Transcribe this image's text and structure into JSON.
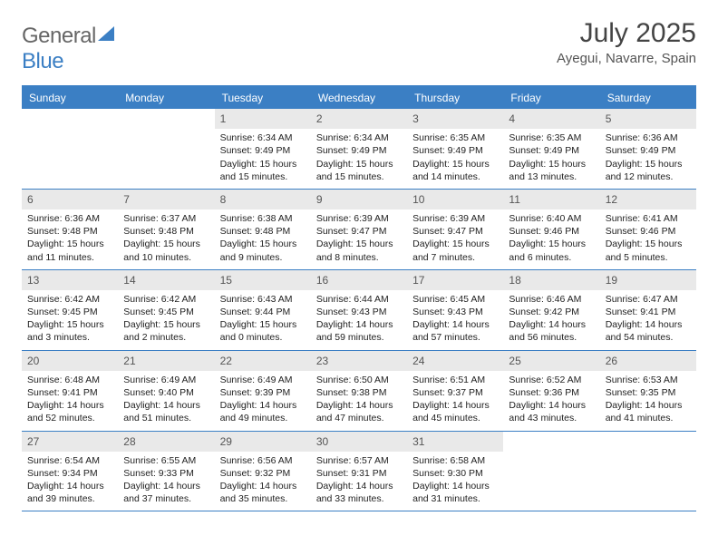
{
  "logo": {
    "part1": "General",
    "part2": "Blue"
  },
  "title": "July 2025",
  "location": "Ayegui, Navarre, Spain",
  "colors": {
    "accent": "#3b7fc4",
    "header_bg": "#e9e9e9",
    "text": "#222222",
    "muted": "#666666"
  },
  "dow": [
    "Sunday",
    "Monday",
    "Tuesday",
    "Wednesday",
    "Thursday",
    "Friday",
    "Saturday"
  ],
  "weeks": [
    [
      null,
      null,
      {
        "n": "1",
        "sr": "6:34 AM",
        "ss": "9:49 PM",
        "dl": "15 hours and 15 minutes."
      },
      {
        "n": "2",
        "sr": "6:34 AM",
        "ss": "9:49 PM",
        "dl": "15 hours and 15 minutes."
      },
      {
        "n": "3",
        "sr": "6:35 AM",
        "ss": "9:49 PM",
        "dl": "15 hours and 14 minutes."
      },
      {
        "n": "4",
        "sr": "6:35 AM",
        "ss": "9:49 PM",
        "dl": "15 hours and 13 minutes."
      },
      {
        "n": "5",
        "sr": "6:36 AM",
        "ss": "9:49 PM",
        "dl": "15 hours and 12 minutes."
      }
    ],
    [
      {
        "n": "6",
        "sr": "6:36 AM",
        "ss": "9:48 PM",
        "dl": "15 hours and 11 minutes."
      },
      {
        "n": "7",
        "sr": "6:37 AM",
        "ss": "9:48 PM",
        "dl": "15 hours and 10 minutes."
      },
      {
        "n": "8",
        "sr": "6:38 AM",
        "ss": "9:48 PM",
        "dl": "15 hours and 9 minutes."
      },
      {
        "n": "9",
        "sr": "6:39 AM",
        "ss": "9:47 PM",
        "dl": "15 hours and 8 minutes."
      },
      {
        "n": "10",
        "sr": "6:39 AM",
        "ss": "9:47 PM",
        "dl": "15 hours and 7 minutes."
      },
      {
        "n": "11",
        "sr": "6:40 AM",
        "ss": "9:46 PM",
        "dl": "15 hours and 6 minutes."
      },
      {
        "n": "12",
        "sr": "6:41 AM",
        "ss": "9:46 PM",
        "dl": "15 hours and 5 minutes."
      }
    ],
    [
      {
        "n": "13",
        "sr": "6:42 AM",
        "ss": "9:45 PM",
        "dl": "15 hours and 3 minutes."
      },
      {
        "n": "14",
        "sr": "6:42 AM",
        "ss": "9:45 PM",
        "dl": "15 hours and 2 minutes."
      },
      {
        "n": "15",
        "sr": "6:43 AM",
        "ss": "9:44 PM",
        "dl": "15 hours and 0 minutes."
      },
      {
        "n": "16",
        "sr": "6:44 AM",
        "ss": "9:43 PM",
        "dl": "14 hours and 59 minutes."
      },
      {
        "n": "17",
        "sr": "6:45 AM",
        "ss": "9:43 PM",
        "dl": "14 hours and 57 minutes."
      },
      {
        "n": "18",
        "sr": "6:46 AM",
        "ss": "9:42 PM",
        "dl": "14 hours and 56 minutes."
      },
      {
        "n": "19",
        "sr": "6:47 AM",
        "ss": "9:41 PM",
        "dl": "14 hours and 54 minutes."
      }
    ],
    [
      {
        "n": "20",
        "sr": "6:48 AM",
        "ss": "9:41 PM",
        "dl": "14 hours and 52 minutes."
      },
      {
        "n": "21",
        "sr": "6:49 AM",
        "ss": "9:40 PM",
        "dl": "14 hours and 51 minutes."
      },
      {
        "n": "22",
        "sr": "6:49 AM",
        "ss": "9:39 PM",
        "dl": "14 hours and 49 minutes."
      },
      {
        "n": "23",
        "sr": "6:50 AM",
        "ss": "9:38 PM",
        "dl": "14 hours and 47 minutes."
      },
      {
        "n": "24",
        "sr": "6:51 AM",
        "ss": "9:37 PM",
        "dl": "14 hours and 45 minutes."
      },
      {
        "n": "25",
        "sr": "6:52 AM",
        "ss": "9:36 PM",
        "dl": "14 hours and 43 minutes."
      },
      {
        "n": "26",
        "sr": "6:53 AM",
        "ss": "9:35 PM",
        "dl": "14 hours and 41 minutes."
      }
    ],
    [
      {
        "n": "27",
        "sr": "6:54 AM",
        "ss": "9:34 PM",
        "dl": "14 hours and 39 minutes."
      },
      {
        "n": "28",
        "sr": "6:55 AM",
        "ss": "9:33 PM",
        "dl": "14 hours and 37 minutes."
      },
      {
        "n": "29",
        "sr": "6:56 AM",
        "ss": "9:32 PM",
        "dl": "14 hours and 35 minutes."
      },
      {
        "n": "30",
        "sr": "6:57 AM",
        "ss": "9:31 PM",
        "dl": "14 hours and 33 minutes."
      },
      {
        "n": "31",
        "sr": "6:58 AM",
        "ss": "9:30 PM",
        "dl": "14 hours and 31 minutes."
      },
      null,
      null
    ]
  ],
  "labels": {
    "sunrise": "Sunrise:",
    "sunset": "Sunset:",
    "daylight": "Daylight:"
  }
}
